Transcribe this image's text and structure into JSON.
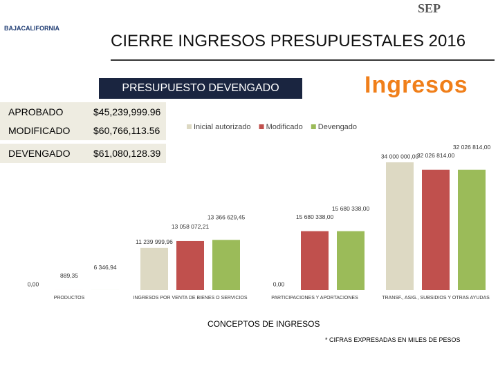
{
  "header": {
    "title": "CIERRE INGRESOS PRESUPUESTALES 2016",
    "logo_left": "BAJACALIFORNIA",
    "logo_right": "SEP"
  },
  "banner": "PRESUPUESTO DEVENGADO",
  "badge": "Ingresos",
  "summary": {
    "rows": [
      [
        "APROBADO",
        "$45,239,999.96"
      ],
      [
        "MODIFICADO",
        "$60,766,113.56"
      ],
      [
        "DEVENGADO",
        "$61,080,128.39"
      ]
    ]
  },
  "chart_data": {
    "type": "bar",
    "categories": [
      "PRODUCTOS",
      "INGRESOS POR VENTA DE BIENES O SERVICIOS",
      "PARTICIPACIONES Y APORTACIONES",
      "TRANSF., ASIG., SUBSIDIOS Y OTRAS AYUDAS"
    ],
    "series": [
      {
        "name": "Inicial autorizado",
        "color": "#ddd9c3",
        "values": [
          0,
          11239999.96,
          0,
          34000000
        ],
        "value_labels": [
          "0,00",
          "11 239 999,96",
          "0,00",
          "34 000 000,00"
        ]
      },
      {
        "name": "Modificado",
        "color": "#c0504d",
        "values": [
          889.35,
          13058072.21,
          15680338,
          32026814
        ],
        "value_labels": [
          "889,35",
          "13 058 072,21",
          "15 680 338,00",
          "32 026 814,00"
        ]
      },
      {
        "name": "Devengado",
        "color": "#9bbb59",
        "values": [
          6346.94,
          13366629.45,
          15680338,
          32026814
        ],
        "value_labels": [
          "6 346,94",
          "13 366 629,45",
          "15 680 338,00",
          "32 026 814,00"
        ]
      }
    ],
    "x_label": "CONCEPTOS DE INGRESOS",
    "note": "* CIFRAS EXPRESADAS EN MILES DE PESOS"
  }
}
